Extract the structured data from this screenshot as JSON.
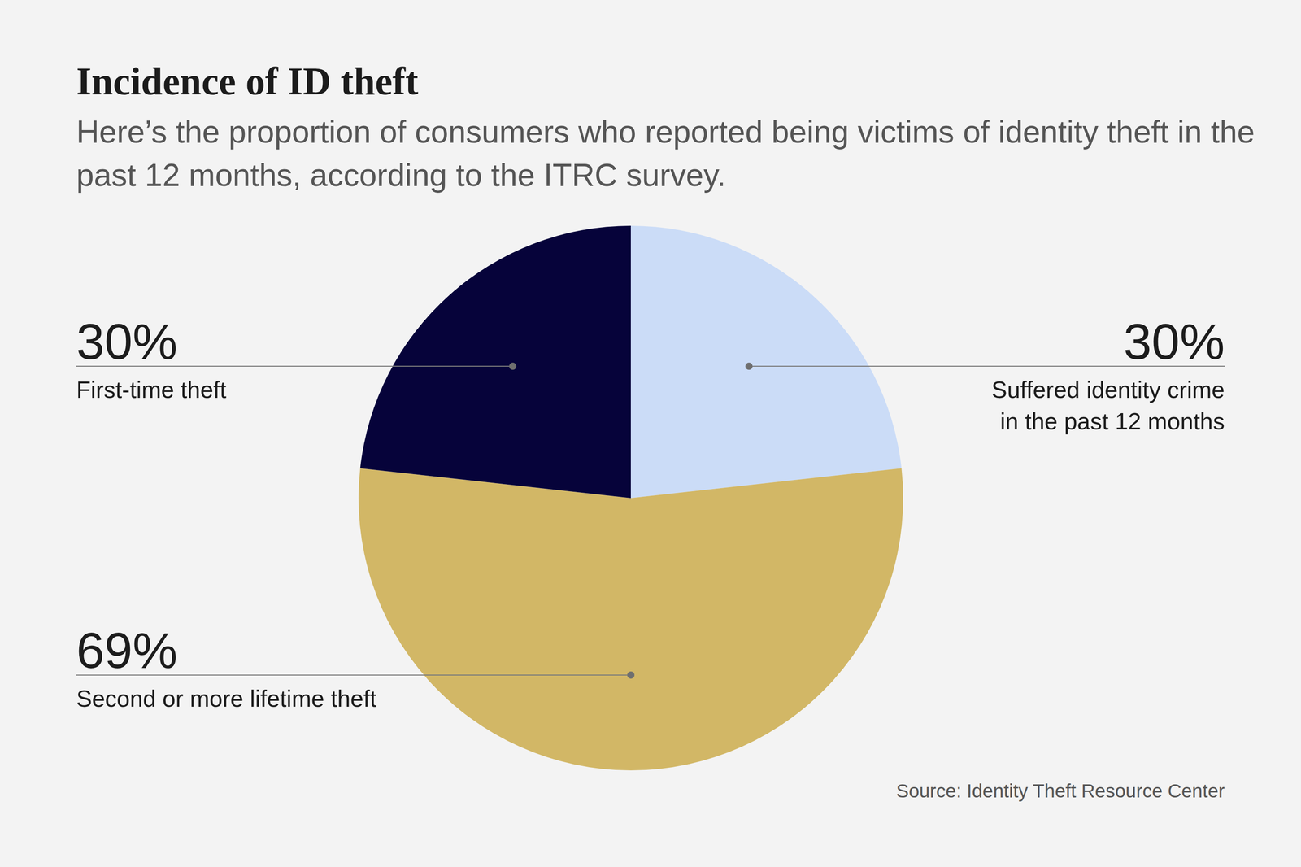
{
  "chart_data": {
    "type": "pie",
    "title": "Incidence of ID theft",
    "subtitle": "Here’s the proportion of consumers who reported being victims of identity theft in the past 12 months, according to the ITRC survey.",
    "categories": [
      "Suffered identity crime in the past 12 months",
      "Second or more lifetime theft",
      "First-time theft"
    ],
    "values": [
      30,
      69,
      30
    ],
    "value_labels": [
      "30%",
      "69%",
      "30%"
    ],
    "colors": [
      "#cbdcf7",
      "#d2b766",
      "#06033a"
    ],
    "data_labels": true,
    "source": "Source: Identity Theft Resource Center"
  }
}
